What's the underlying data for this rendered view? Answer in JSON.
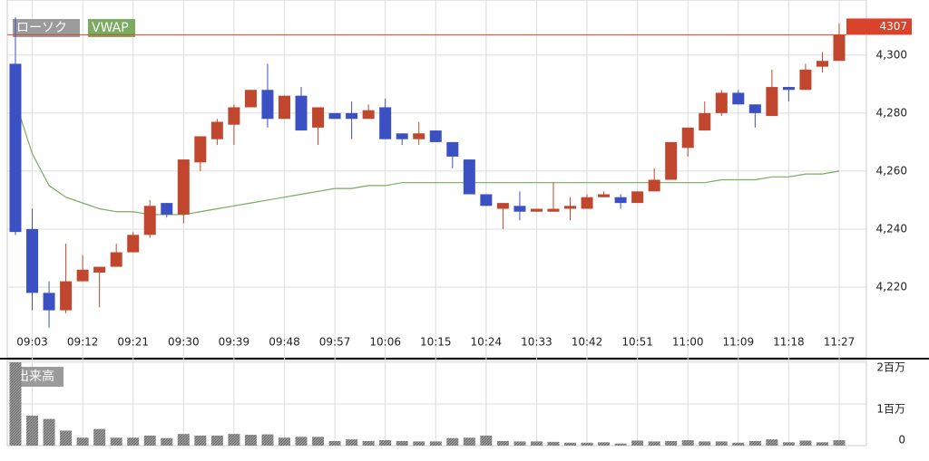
{
  "chart_data": [
    {
      "type": "candlestick",
      "name": "ローソク",
      "up_color": "#c0472d",
      "down_color": "#3b50c2",
      "categories": [
        null,
        "09:03",
        null,
        null,
        "09:12",
        null,
        null,
        "09:21",
        null,
        null,
        "09:30",
        null,
        null,
        "09:39",
        null,
        null,
        "09:48",
        null,
        null,
        "09:57",
        null,
        null,
        "10:06",
        null,
        null,
        "10:15",
        null,
        null,
        "10:24",
        null,
        null,
        "10:33",
        null,
        null,
        "10:42",
        null,
        null,
        "10:51",
        null,
        null,
        "11:00",
        null,
        null,
        "11:09",
        null,
        null,
        "11:18",
        null,
        null,
        "11:27"
      ],
      "open": [
        4297,
        4240,
        4218,
        4212,
        4222,
        4225,
        4227,
        4232,
        4238,
        4249,
        4245,
        4263,
        4271,
        4276,
        4282,
        4288,
        4278,
        4286,
        4275,
        4280,
        4280,
        4278,
        4282,
        4273,
        4271,
        4274,
        4270,
        4264,
        4252,
        4247,
        4248,
        4246,
        4246,
        4247,
        4247,
        4251,
        4251,
        4249,
        4253,
        4257,
        4268,
        4274,
        4280,
        4287,
        4283,
        4279,
        4289,
        4288,
        4296,
        4298
      ],
      "high": [
        4313,
        4247,
        4222,
        4235,
        4231,
        4227,
        4235,
        4239,
        4250,
        4249,
        4264,
        4272,
        4278,
        4283,
        4288,
        4297,
        4286,
        4289,
        4282,
        4280,
        4284,
        4283,
        4285,
        4273,
        4277,
        4274,
        4270,
        4264,
        4252,
        4249,
        4253,
        4247,
        4256,
        4251,
        4252,
        4253,
        4252,
        4253,
        4261,
        4270,
        4275,
        4284,
        4288,
        4288,
        4283,
        4295,
        4289,
        4297,
        4301,
        4311
      ],
      "low": [
        4238,
        4212,
        4206,
        4211,
        4222,
        4213,
        4227,
        4232,
        4237,
        4244,
        4242,
        4260,
        4269,
        4269,
        4282,
        4275,
        4278,
        4274,
        4269,
        4278,
        4271,
        4278,
        4271,
        4269,
        4269,
        4270,
        4261,
        4252,
        4248,
        4240,
        4243,
        4246,
        4246,
        4243,
        4247,
        4251,
        4247,
        4249,
        4253,
        4257,
        4265,
        4274,
        4279,
        4283,
        4275,
        4279,
        4284,
        4288,
        4294,
        4298
      ],
      "close": [
        4239,
        4218,
        4212,
        4222,
        4226,
        4227,
        4232,
        4238,
        4248,
        4245,
        4264,
        4272,
        4277,
        4282,
        4288,
        4278,
        4286,
        4274,
        4282,
        4278,
        4278,
        4281,
        4271,
        4271,
        4273,
        4270,
        4265,
        4252,
        4248,
        4249,
        4246,
        4247,
        4247,
        4248,
        4251,
        4252,
        4249,
        4253,
        4257,
        4270,
        4275,
        4280,
        4287,
        4283,
        4280,
        4289,
        4288,
        4295,
        4298,
        4307
      ],
      "series": [
        {
          "name": "VWAP",
          "color": "#7aab5f",
          "values": [
            4284,
            4266,
            4255,
            4251,
            4249,
            4247,
            4246,
            4246,
            4245,
            4245,
            4245,
            4246,
            4247,
            4248,
            4249,
            4250,
            4251,
            4252,
            4253,
            4254,
            4254,
            4255,
            4255,
            4256,
            4256,
            4256,
            4256,
            4256,
            4256,
            4256,
            4256,
            4256,
            4256,
            4256,
            4256,
            4256,
            4256,
            4256,
            4256,
            4256,
            4256,
            4256,
            4257,
            4257,
            4257,
            4258,
            4258,
            4259,
            4259,
            4260
          ]
        }
      ],
      "last_price": 4307,
      "last_price_color": "#d9432b",
      "ylim": [
        4205,
        4319
      ],
      "yticks": [
        {
          "value": 4220,
          "label": "4,220"
        },
        {
          "value": 4240,
          "label": "4,240"
        },
        {
          "value": 4260,
          "label": "4,260"
        },
        {
          "value": 4280,
          "label": "4,280"
        },
        {
          "value": 4300,
          "label": "4,300"
        }
      ],
      "grid": true
    },
    {
      "type": "bar",
      "title": "出来高",
      "color": "#8a8a8a",
      "values": [
        2000000,
        720000,
        640000,
        360000,
        190000,
        400000,
        190000,
        190000,
        240000,
        180000,
        280000,
        240000,
        240000,
        280000,
        260000,
        270000,
        190000,
        210000,
        210000,
        110000,
        150000,
        110000,
        130000,
        110000,
        100000,
        100000,
        180000,
        190000,
        240000,
        110000,
        100000,
        100000,
        90000,
        70000,
        70000,
        80000,
        50000,
        120000,
        100000,
        110000,
        130000,
        100000,
        100000,
        70000,
        110000,
        150000,
        80000,
        120000,
        80000,
        130000
      ],
      "ylim": [
        0,
        2000000
      ],
      "yticks": [
        0,
        {
          "value": 1000000,
          "label": "1百万"
        },
        {
          "value": 2000000,
          "label": "2百万"
        }
      ],
      "grid": true
    }
  ]
}
